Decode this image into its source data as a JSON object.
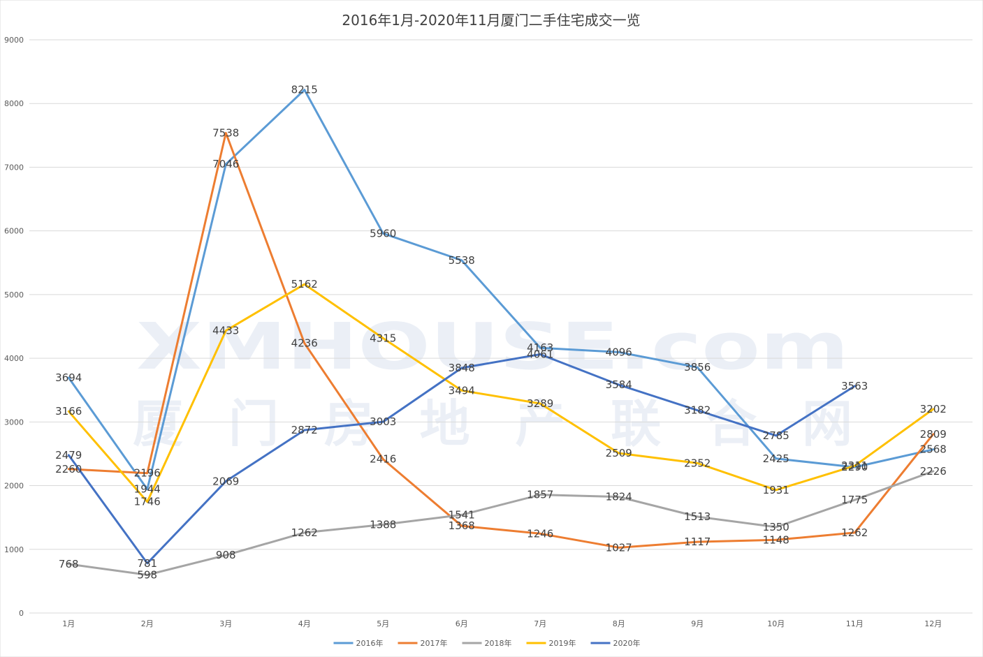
{
  "chart_data": {
    "type": "line",
    "title": "2016年1月-2020年11月厦门二手住宅成交一览",
    "categories": [
      "1月",
      "2月",
      "3月",
      "4月",
      "5月",
      "6月",
      "7月",
      "8月",
      "9月",
      "10月",
      "11月",
      "12月"
    ],
    "ylim": [
      0,
      9000
    ],
    "yticks": [
      0,
      1000,
      2000,
      3000,
      4000,
      5000,
      6000,
      7000,
      8000,
      9000
    ],
    "grid": true,
    "legend_position": "bottom",
    "series": [
      {
        "name": "2016年",
        "color": "#5b9bd5",
        "values": [
          3694,
          1944,
          7046,
          8215,
          5960,
          5538,
          4163,
          4096,
          3856,
          2425,
          2290,
          2568
        ]
      },
      {
        "name": "2017年",
        "color": "#ed7d31",
        "values": [
          2260,
          2196,
          7538,
          4236,
          2416,
          1368,
          1246,
          1027,
          1117,
          1148,
          1262,
          2809
        ]
      },
      {
        "name": "2018年",
        "color": "#a5a5a5",
        "values": [
          768,
          598,
          908,
          1262,
          1388,
          1541,
          1857,
          1824,
          1513,
          1350,
          1775,
          2226
        ]
      },
      {
        "name": "2019年",
        "color": "#ffc000",
        "values": [
          3166,
          1746,
          4433,
          5162,
          4315,
          3494,
          3289,
          2509,
          2352,
          1931,
          2311,
          3202
        ]
      },
      {
        "name": "2020年",
        "color": "#4472c4",
        "values": [
          2479,
          781,
          2069,
          2872,
          3003,
          3848,
          4061,
          3584,
          3182,
          2785,
          3563,
          null
        ]
      }
    ]
  },
  "watermark": {
    "logo_text": "XMHOUSE.com",
    "cn_text": "厦门房地产联合网"
  }
}
